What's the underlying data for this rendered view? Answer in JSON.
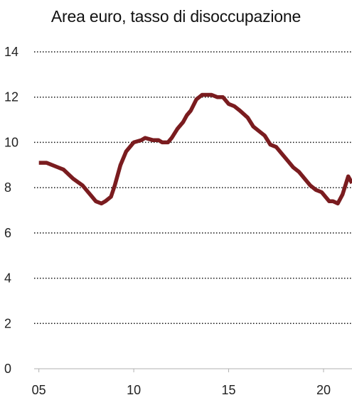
{
  "chart_data": {
    "type": "line",
    "title": "Area euro, tasso di disoccupazione",
    "xlabel": "",
    "ylabel": "",
    "xlim": [
      2004.75,
      2021.5
    ],
    "ylim": [
      0,
      14
    ],
    "yticks": [
      0,
      2,
      4,
      6,
      8,
      10,
      12,
      14
    ],
    "xticks": [
      {
        "value": 2005,
        "label": "05"
      },
      {
        "value": 2010,
        "label": "10"
      },
      {
        "value": 2015,
        "label": "15"
      },
      {
        "value": 2020,
        "label": "20"
      }
    ],
    "grid": "horizontal dotted",
    "line_color": "#7a1c1f",
    "series": [
      {
        "x": [
          2005.0,
          2005.4,
          2006.0,
          2006.3,
          2006.8,
          2007.3,
          2007.8,
          2008.0,
          2008.3,
          2008.5,
          2008.8,
          2009.0,
          2009.3,
          2009.6,
          2010.0,
          2010.4,
          2010.6,
          2011.0,
          2011.3,
          2011.5,
          2011.8,
          2012.0,
          2012.3,
          2012.6,
          2012.8,
          2013.0,
          2013.3,
          2013.6,
          2013.9,
          2014.1,
          2014.4,
          2014.7,
          2015.0,
          2015.3,
          2015.6,
          2016.0,
          2016.3,
          2016.6,
          2016.9,
          2017.2,
          2017.5,
          2017.8,
          2018.1,
          2018.4,
          2018.7,
          2019.0,
          2019.3,
          2019.6,
          2019.9,
          2020.1,
          2020.3,
          2020.5,
          2020.75,
          2021.0,
          2021.3,
          2021.5
        ],
        "y": [
          9.1,
          9.1,
          8.9,
          8.8,
          8.4,
          8.1,
          7.6,
          7.4,
          7.3,
          7.4,
          7.6,
          8.1,
          9.0,
          9.6,
          10.0,
          10.1,
          10.2,
          10.1,
          10.1,
          10.0,
          10.0,
          10.2,
          10.6,
          10.9,
          11.2,
          11.4,
          11.9,
          12.1,
          12.1,
          12.1,
          12.0,
          12.0,
          11.7,
          11.6,
          11.4,
          11.1,
          10.7,
          10.5,
          10.3,
          9.9,
          9.8,
          9.5,
          9.2,
          8.9,
          8.7,
          8.4,
          8.1,
          7.9,
          7.8,
          7.6,
          7.4,
          7.4,
          7.3,
          7.7,
          8.5,
          8.2
        ]
      }
    ]
  }
}
